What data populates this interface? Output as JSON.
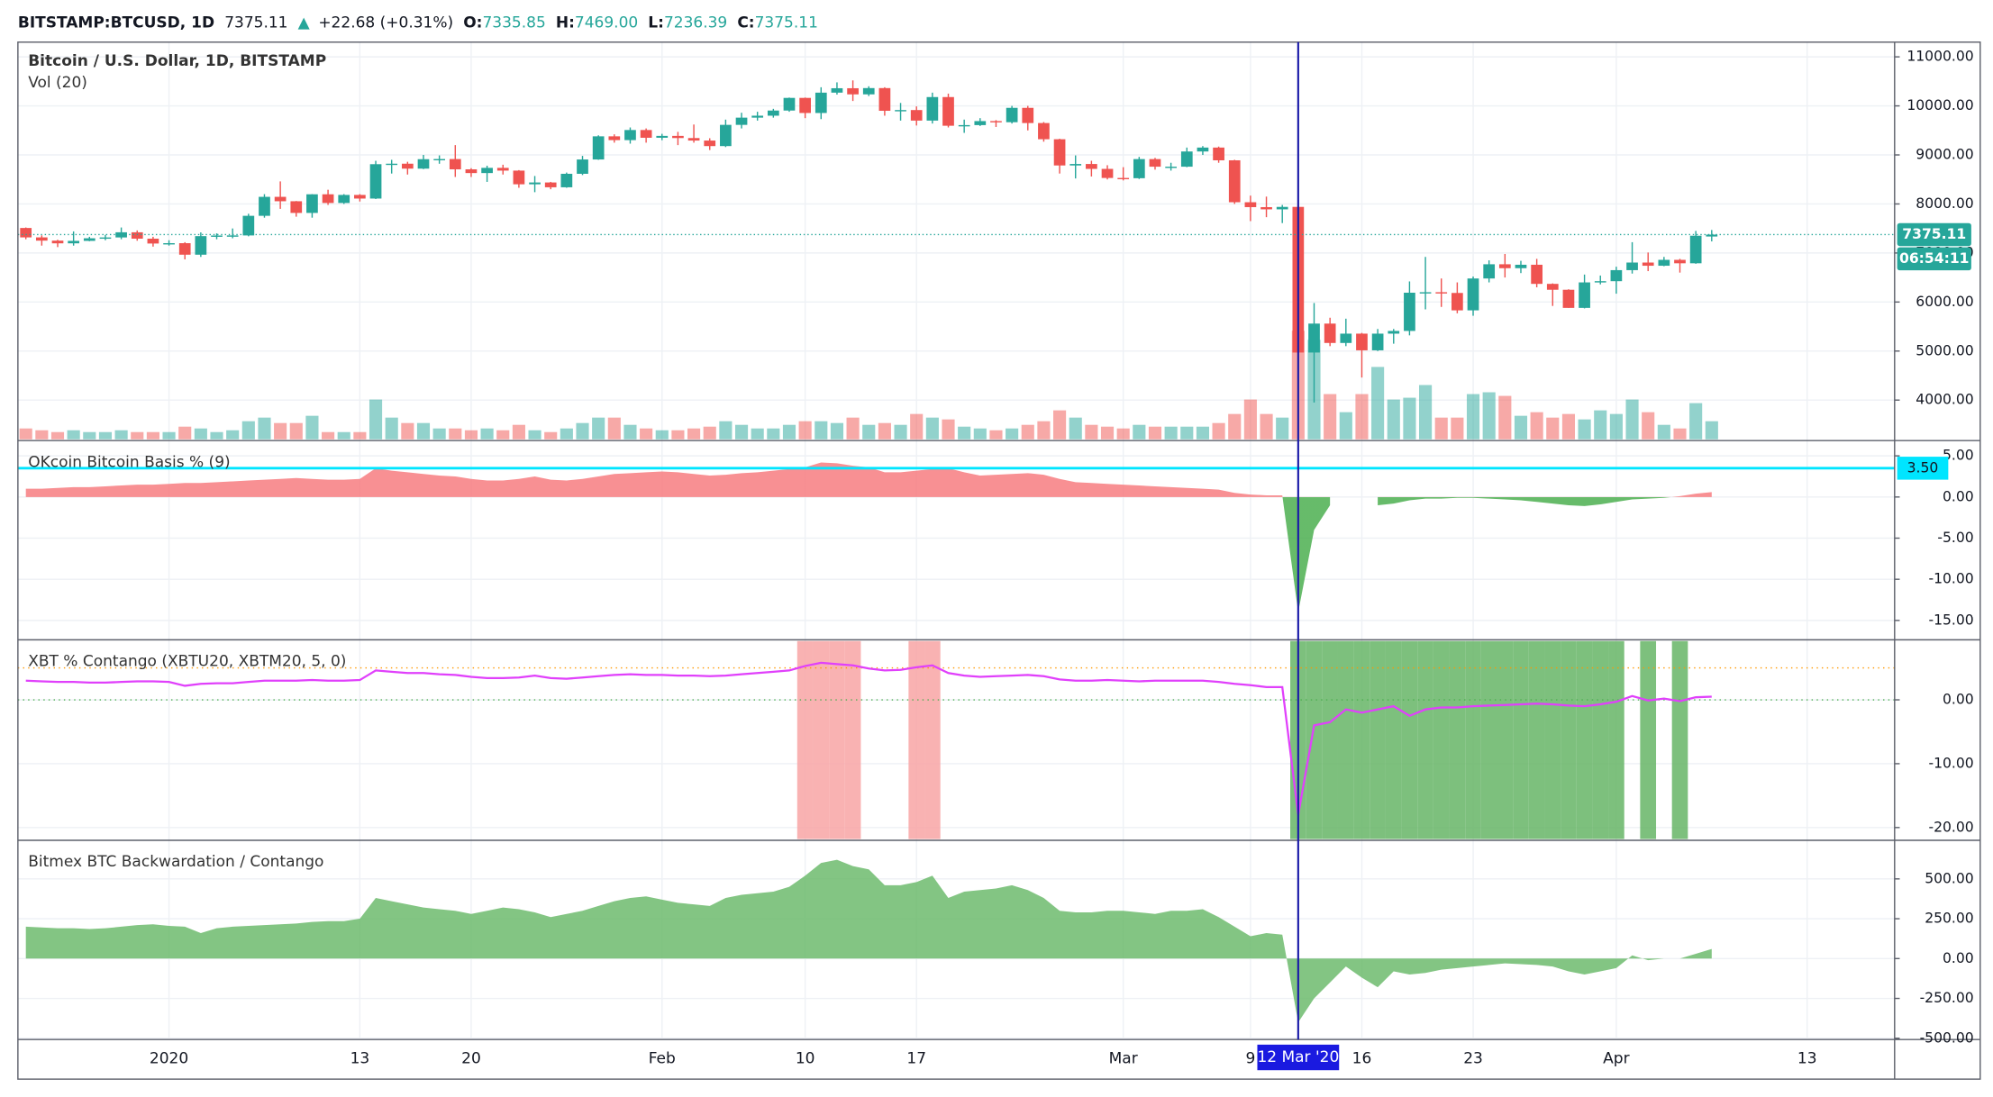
{
  "header": {
    "symbol": "BITSTAMP:BTCUSD, 1D",
    "last": "7375.11",
    "arrow": "▲",
    "change": "+22.68 (+0.31%)",
    "open_label": "O:",
    "open": "7335.85",
    "high_label": "H:",
    "high": "7469.00",
    "low_label": "L:",
    "low": "7236.39",
    "close_label": "C:",
    "close": "7375.11"
  },
  "chart_data": [
    {
      "type": "candlestick",
      "title": "Bitcoin / U.S. Dollar, 1D, BITSTAMP",
      "subtitle": "Vol (20)",
      "countdown": "06:54:11",
      "categories": [
        null,
        null,
        null,
        null,
        null,
        null,
        null,
        null,
        null,
        "2020",
        null,
        null,
        null,
        null,
        null,
        null,
        null,
        null,
        null,
        null,
        null,
        "13",
        null,
        null,
        null,
        null,
        null,
        null,
        "20",
        null,
        null,
        null,
        null,
        null,
        null,
        null,
        null,
        null,
        null,
        null,
        "Feb",
        null,
        null,
        null,
        null,
        null,
        null,
        null,
        null,
        "10",
        null,
        null,
        null,
        null,
        null,
        null,
        "17",
        null,
        null,
        null,
        null,
        null,
        null,
        null,
        null,
        null,
        null,
        null,
        null,
        "Mar",
        null,
        null,
        null,
        null,
        null,
        null,
        null,
        "9",
        null,
        null,
        "12 Mar '20",
        null,
        null,
        null,
        "16",
        null,
        null,
        null,
        null,
        null,
        null,
        "23",
        null,
        null,
        null,
        null,
        null,
        null,
        null,
        null,
        "Apr",
        null,
        null,
        null,
        null,
        null,
        null,
        null,
        null,
        null,
        null,
        null,
        "13",
        null,
        null,
        null,
        null,
        null
      ],
      "open": [
        7510,
        7318,
        7252,
        7197,
        7247,
        7300,
        7317,
        7422,
        7292,
        7193,
        7200,
        6965,
        7344,
        7356,
        7358,
        7758,
        8145,
        8055,
        7817,
        8197,
        8020,
        8184,
        8110,
        8811,
        8821,
        8720,
        8913,
        8916,
        8706,
        8630,
        8736,
        8680,
        8401,
        8438,
        8340,
        8615,
        8907,
        9379,
        9302,
        9508,
        9350,
        9388,
        9344,
        9293,
        9180,
        9613,
        9760,
        9800,
        9905,
        10163,
        9855,
        10270,
        10360,
        10235,
        10363,
        9900,
        9915,
        9700,
        10180,
        9595,
        9608,
        9690,
        9667,
        9960,
        9650,
        9320,
        8785,
        8815,
        8715,
        8530,
        8525,
        8915,
        8760,
        8760,
        9070,
        9150,
        8890,
        8035,
        7935,
        7890,
        7940,
        4970,
        5560,
        5165,
        5355,
        5015,
        5355,
        5410,
        6190,
        6200,
        6185,
        5830,
        6480,
        6770,
        6690,
        6760,
        6370,
        6250,
        5880,
        6400,
        6425,
        6650,
        6805,
        6740,
        6860,
        6790,
        7335.85,
        null,
        null,
        null,
        null,
        null,
        null,
        null,
        null,
        null,
        null,
        null
      ],
      "high": [
        7520,
        7360,
        7270,
        7440,
        7330,
        7370,
        7520,
        7460,
        7330,
        7260,
        7220,
        7420,
        7400,
        7500,
        7800,
        8200,
        8460,
        8060,
        8200,
        8290,
        8200,
        8200,
        8880,
        8900,
        8860,
        9000,
        8990,
        9200,
        8730,
        8780,
        8800,
        8690,
        8570,
        8450,
        8640,
        8980,
        9400,
        9420,
        9560,
        9540,
        9430,
        9470,
        9620,
        9340,
        9720,
        9860,
        9880,
        9940,
        10170,
        10170,
        10380,
        10480,
        10520,
        10400,
        10380,
        10060,
        9990,
        10270,
        10250,
        9720,
        9750,
        9710,
        10000,
        10000,
        9670,
        9330,
        8990,
        8880,
        8790,
        8750,
        8960,
        8940,
        8840,
        9150,
        9180,
        9170,
        8900,
        8170,
        8150,
        7980,
        7960,
        5980,
        5680,
        5660,
        5370,
        5450,
        5450,
        6420,
        6920,
        6480,
        6400,
        6520,
        6850,
        6980,
        6840,
        6880,
        6380,
        6260,
        6560,
        6540,
        6720,
        7220,
        7010,
        6920,
        6880,
        7450,
        7469,
        null,
        null,
        null,
        null,
        null,
        null,
        null,
        null,
        null,
        null,
        null
      ],
      "low": [
        7280,
        7150,
        7120,
        7150,
        7240,
        7260,
        7280,
        7250,
        7130,
        7150,
        6870,
        6920,
        7280,
        7300,
        7340,
        7720,
        7900,
        7740,
        7720,
        7980,
        8000,
        8050,
        8100,
        8620,
        8600,
        8710,
        8820,
        8550,
        8550,
        8450,
        8600,
        8330,
        8240,
        8300,
        8330,
        8590,
        8900,
        9250,
        9230,
        9250,
        9300,
        9200,
        9250,
        9100,
        9160,
        9540,
        9700,
        9760,
        9880,
        9750,
        9730,
        10230,
        10100,
        10200,
        9800,
        9700,
        9600,
        9640,
        9560,
        9450,
        9590,
        9570,
        9640,
        9500,
        9270,
        8620,
        8520,
        8560,
        8500,
        8480,
        8510,
        8700,
        8680,
        8750,
        9000,
        8840,
        8000,
        7650,
        7730,
        7610,
        4400,
        3950,
        5100,
        5100,
        4460,
        5000,
        5150,
        5320,
        5850,
        5900,
        5770,
        5720,
        6400,
        6500,
        6590,
        6300,
        5920,
        5880,
        5870,
        6360,
        6170,
        6580,
        6630,
        6730,
        6600,
        6780,
        7236.39,
        null,
        null,
        null,
        null,
        null,
        null,
        null,
        null,
        null,
        null,
        null
      ],
      "close": [
        7318,
        7252,
        7197,
        7247,
        7300,
        7317,
        7422,
        7292,
        7193,
        7200,
        6965,
        7344,
        7356,
        7358,
        7758,
        8145,
        8055,
        7817,
        8197,
        8020,
        8184,
        8110,
        8811,
        8821,
        8720,
        8913,
        8916,
        8706,
        8630,
        8736,
        8680,
        8401,
        8438,
        8340,
        8615,
        8907,
        9379,
        9302,
        9508,
        9350,
        9388,
        9344,
        9293,
        9180,
        9613,
        9760,
        9800,
        9905,
        10163,
        9855,
        10270,
        10360,
        10235,
        10363,
        9900,
        9915,
        9700,
        10180,
        9595,
        9608,
        9690,
        9667,
        9960,
        9650,
        9320,
        8785,
        8815,
        8715,
        8530,
        8525,
        8915,
        8760,
        8760,
        9070,
        9150,
        8890,
        8035,
        7935,
        7890,
        7940,
        4970,
        5560,
        5165,
        5355,
        5015,
        5355,
        5410,
        6190,
        6200,
        6185,
        5830,
        6480,
        6770,
        6690,
        6760,
        6370,
        6250,
        5880,
        6400,
        6425,
        6650,
        6805,
        6740,
        6860,
        6790,
        7352,
        7375.11,
        null,
        null,
        null,
        null,
        null,
        null,
        null,
        null,
        null,
        null,
        null
      ],
      "volume": [
        6,
        5,
        4,
        5,
        4,
        4,
        5,
        4,
        4,
        4,
        7,
        6,
        4,
        5,
        10,
        12,
        9,
        9,
        13,
        4,
        4,
        4,
        22,
        12,
        9,
        9,
        6,
        6,
        5,
        6,
        5,
        8,
        5,
        4,
        6,
        9,
        12,
        12,
        8,
        6,
        5,
        5,
        6,
        7,
        10,
        8,
        6,
        6,
        8,
        10,
        10,
        9,
        12,
        8,
        9,
        8,
        14,
        12,
        11,
        7,
        6,
        5,
        6,
        8,
        10,
        16,
        12,
        8,
        7,
        6,
        8,
        7,
        7,
        7,
        7,
        9,
        14,
        22,
        14,
        12,
        60,
        55,
        25,
        15,
        25,
        40,
        22,
        23,
        30,
        12,
        12,
        25,
        26,
        24,
        13,
        15,
        12,
        14,
        11,
        16,
        14,
        22,
        15,
        8,
        6,
        20,
        10,
        null,
        null,
        null,
        null,
        null,
        null,
        null,
        null,
        null,
        null,
        null
      ],
      "up_color": "#26a69a",
      "down_color": "#ef5350",
      "ylim": [
        3200,
        11300
      ],
      "yticks": [
        {
          "value": 4000,
          "label": "4000.00"
        },
        {
          "value": 5000,
          "label": "5000.00"
        },
        {
          "value": 6000,
          "label": "6000.00"
        },
        {
          "value": 7000,
          "label": "7000.00"
        },
        {
          "value": 8000,
          "label": "8000.00"
        },
        {
          "value": 9000,
          "label": "9000.00"
        },
        {
          "value": 10000,
          "label": "10000.00"
        },
        {
          "value": 11000,
          "label": "11000.00"
        }
      ],
      "grid": true
    },
    {
      "type": "area",
      "title": "OKcoin Bitcoin Basis % (9)",
      "values": [
        1.0,
        1.0,
        1.1,
        1.2,
        1.2,
        1.3,
        1.4,
        1.5,
        1.5,
        1.6,
        1.7,
        1.7,
        1.8,
        1.9,
        2.0,
        2.1,
        2.2,
        2.3,
        2.2,
        2.1,
        2.1,
        2.2,
        3.5,
        3.2,
        3.0,
        2.8,
        2.6,
        2.5,
        2.2,
        2.0,
        2.0,
        2.2,
        2.5,
        2.1,
        2.0,
        2.2,
        2.5,
        2.8,
        2.9,
        3.0,
        3.1,
        3.0,
        2.8,
        2.6,
        2.7,
        2.9,
        3.0,
        3.2,
        3.4,
        3.6,
        4.2,
        4.1,
        3.8,
        3.6,
        3.0,
        3.0,
        3.2,
        3.4,
        3.5,
        3.0,
        2.6,
        2.7,
        2.8,
        2.9,
        2.7,
        2.2,
        1.8,
        1.7,
        1.6,
        1.5,
        1.4,
        1.3,
        1.2,
        1.1,
        1.0,
        0.9,
        0.5,
        0.3,
        0.2,
        0.2,
        -14.0,
        -4.0,
        -1.0,
        null,
        null,
        -1.0,
        -0.8,
        -0.4,
        -0.2,
        -0.2,
        -0.1,
        -0.1,
        -0.2,
        -0.3,
        -0.4,
        -0.6,
        -0.8,
        -1.0,
        -1.1,
        -0.9,
        -0.6,
        -0.3,
        -0.2,
        -0.1,
        0.1,
        0.4,
        0.6,
        null,
        null,
        null,
        null,
        null,
        null,
        null,
        null,
        null,
        null,
        null
      ],
      "color_positive": "#f77c80",
      "color_negative": "#4caf50",
      "hline": {
        "value": 3.5,
        "label": "3.50"
      },
      "hline_color": "#00e5ff",
      "ylim": [
        -17.2,
        6.7
      ],
      "yticks": [
        {
          "value": 5,
          "label": "5.00"
        },
        {
          "value": 0,
          "label": "0.00"
        },
        {
          "value": -5,
          "label": "-5.00"
        },
        {
          "value": -10,
          "label": "-10.00"
        },
        {
          "value": -15,
          "label": "-15.00"
        }
      ],
      "grid": true
    },
    {
      "type": "line",
      "title": "XBT % Contango (XBTU20, XBTM20, 5, 0)",
      "values": [
        3.0,
        2.9,
        2.8,
        2.8,
        2.7,
        2.7,
        2.8,
        2.9,
        2.9,
        2.8,
        2.2,
        2.5,
        2.6,
        2.6,
        2.8,
        3.0,
        3.0,
        3.0,
        3.1,
        3.0,
        3.0,
        3.1,
        4.6,
        4.4,
        4.2,
        4.2,
        4.0,
        3.9,
        3.6,
        3.4,
        3.4,
        3.5,
        3.8,
        3.4,
        3.3,
        3.5,
        3.7,
        3.9,
        4.0,
        3.9,
        3.9,
        3.8,
        3.8,
        3.7,
        3.8,
        4.0,
        4.2,
        4.4,
        4.6,
        5.3,
        5.8,
        5.6,
        5.4,
        4.9,
        4.6,
        4.7,
        5.1,
        5.4,
        4.2,
        3.8,
        3.6,
        3.7,
        3.8,
        3.9,
        3.7,
        3.2,
        3.0,
        3.0,
        3.1,
        3.0,
        2.9,
        3.0,
        3.0,
        3.0,
        3.0,
        2.8,
        2.5,
        2.3,
        2.0,
        2.0,
        -18.0,
        -4.0,
        -3.5,
        -1.5,
        -2.0,
        -1.5,
        -1.0,
        -2.5,
        -1.5,
        -1.2,
        -1.2,
        -1.0,
        -0.9,
        -0.8,
        -0.7,
        -0.6,
        -0.7,
        -0.9,
        -1.0,
        -0.7,
        -0.3,
        0.6,
        -0.1,
        0.2,
        -0.2,
        0.4,
        0.5,
        null,
        null,
        null,
        null,
        null,
        null,
        null,
        null,
        null,
        null,
        null
      ],
      "color": "#e040fb",
      "thresholds": [
        5,
        0
      ],
      "threshold_colors": [
        "#ff9800",
        "#4caf50"
      ],
      "band_colors": [
        "#f8a5a5",
        "#66b566"
      ],
      "ylim": [
        -21.8,
        9.2
      ],
      "yticks": [
        {
          "value": 0,
          "label": "0.00"
        },
        {
          "value": -10,
          "label": "-10.00"
        },
        {
          "value": -20,
          "label": "-20.00"
        }
      ],
      "grid": true
    },
    {
      "type": "area",
      "title": "Bitmex BTC Backwardation / Contango",
      "values": [
        200,
        195,
        190,
        190,
        185,
        190,
        200,
        210,
        215,
        205,
        200,
        160,
        190,
        200,
        205,
        210,
        215,
        220,
        230,
        235,
        235,
        250,
        380,
        360,
        340,
        320,
        310,
        300,
        280,
        300,
        320,
        310,
        290,
        260,
        280,
        300,
        330,
        360,
        380,
        390,
        370,
        350,
        340,
        330,
        380,
        400,
        410,
        420,
        450,
        520,
        600,
        620,
        580,
        560,
        460,
        460,
        480,
        520,
        380,
        420,
        430,
        440,
        460,
        430,
        380,
        300,
        290,
        290,
        300,
        300,
        290,
        280,
        300,
        300,
        310,
        260,
        200,
        140,
        160,
        150,
        -400,
        -250,
        -150,
        -50,
        -120,
        -180,
        -80,
        -100,
        -90,
        -70,
        -60,
        -50,
        -40,
        -30,
        -35,
        -40,
        -50,
        -80,
        -100,
        -80,
        -60,
        20,
        -10,
        0,
        0,
        30,
        60,
        null,
        null,
        null,
        null,
        null,
        null,
        null,
        null,
        null,
        null,
        null
      ],
      "color_positive": "#6dbb6d",
      "color_negative": "#6dbb6d",
      "ylim": [
        -500,
        734
      ],
      "yticks": [
        {
          "value": 500,
          "label": "500.00"
        },
        {
          "value": 250,
          "label": "250.00"
        },
        {
          "value": 0,
          "label": "0.00"
        },
        {
          "value": -250,
          "label": "-250.00"
        },
        {
          "value": -500,
          "label": "-500.00"
        }
      ],
      "grid": true
    }
  ]
}
